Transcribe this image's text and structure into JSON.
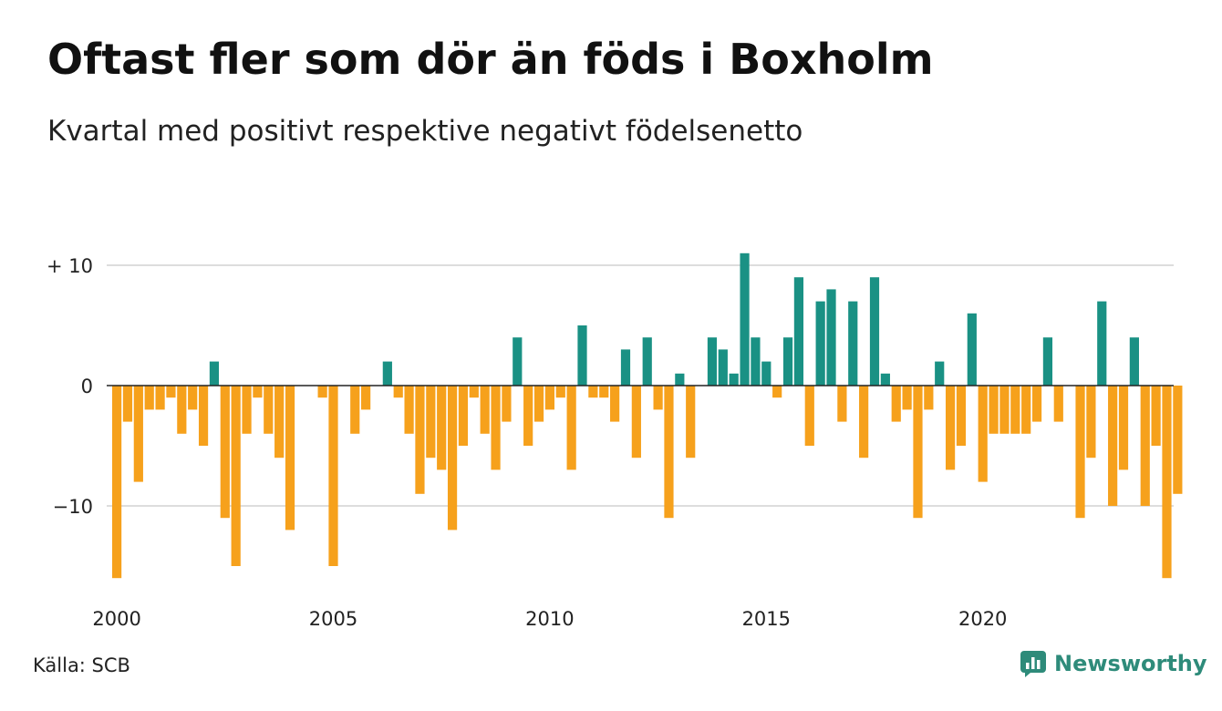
{
  "title": "Oftast fler som dör än föds i Boxholm",
  "subtitle": "Kvartal med positivt respektive negativt födelsenetto",
  "source": "Källa: SCB",
  "brand": "Newsworthy",
  "colors": {
    "positive": "#1a9184",
    "negative": "#f6a11c",
    "grid": "#dddddd",
    "zero": "#222222",
    "brand": "#2e8b7a"
  },
  "chart_data": {
    "type": "bar",
    "xlabel": "",
    "ylabel": "",
    "ylim": [
      -17,
      12
    ],
    "yticks": [
      {
        "value": 10,
        "label": "+ 10"
      },
      {
        "value": 0,
        "label": "0"
      },
      {
        "value": -10,
        "label": "−10"
      }
    ],
    "xticks": [
      "2000",
      "2005",
      "2010",
      "2015",
      "2020"
    ],
    "start_year": 2000,
    "values": [
      -16,
      -3,
      -8,
      -2,
      -2,
      -1,
      -4,
      -2,
      -5,
      2,
      -11,
      -15,
      -4,
      -1,
      -4,
      -6,
      -12,
      0,
      0,
      -1,
      -15,
      0,
      -4,
      -2,
      0,
      2,
      -1,
      -4,
      -9,
      -6,
      -7,
      -12,
      -5,
      -1,
      -4,
      -7,
      -3,
      4,
      -5,
      -3,
      -2,
      -1,
      -7,
      5,
      -1,
      -1,
      -3,
      3,
      -6,
      4,
      -2,
      -11,
      1,
      -6,
      0,
      4,
      3,
      1,
      11,
      4,
      2,
      -1,
      4,
      9,
      -5,
      7,
      8,
      -3,
      7,
      -6,
      9,
      1,
      -3,
      -2,
      -11,
      -2,
      2,
      -7,
      -5,
      6,
      -8,
      -4,
      -4,
      -4,
      -4,
      -3,
      4,
      -3,
      0,
      -11,
      -6,
      7,
      -10,
      -7,
      4,
      -10,
      -5,
      -16,
      -9
    ]
  }
}
